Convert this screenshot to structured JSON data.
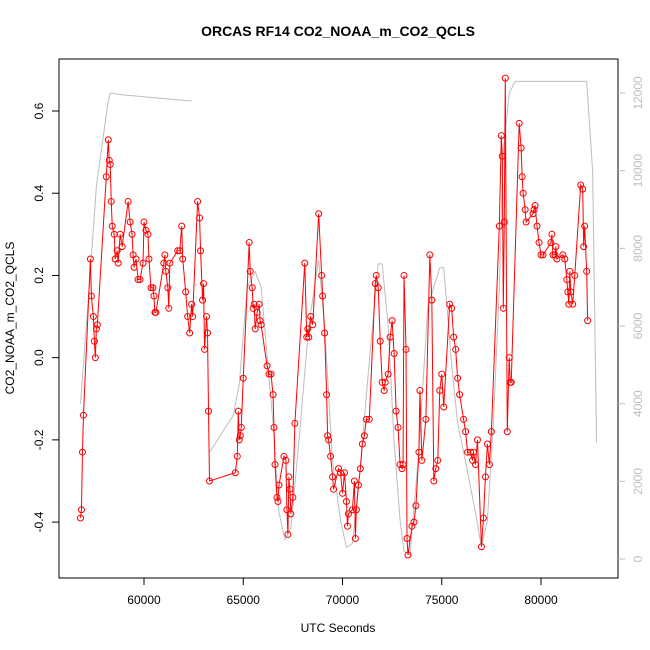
{
  "chart_data": {
    "type": "line",
    "title": "ORCAS RF14 CO2_NOAA_m_CO2_QCLS",
    "x_label": "UTC Seconds",
    "y_label": "CO2_NOAA_m_CO2_QCLS",
    "xlim": [
      55718,
      83879
    ],
    "xticks": [
      60000,
      65000,
      70000,
      75000,
      80000
    ],
    "ylim": [
      -0.536,
      0.7265
    ],
    "yticks": [
      -0.4,
      -0.2,
      {
        "value": 0,
        "label": "0.0"
      },
      0.2,
      0.4,
      0.6
    ],
    "y2lim": [
      -489,
      12876
    ],
    "y2ticks": [
      0,
      2000,
      4000,
      6000,
      8000,
      10000,
      12000
    ],
    "y2_color": "#bebebe",
    "series": [
      {
        "color": "#ff0000",
        "markers": true,
        "x": [
          56800,
          56850,
          56900,
          56950,
          57300,
          57350,
          57450,
          57500,
          57550,
          57600,
          57650,
          58100,
          58200,
          58250,
          58300,
          58350,
          58400,
          58500,
          58550,
          58650,
          58700,
          58800,
          58900,
          59200,
          59300,
          59400,
          59450,
          59500,
          59600,
          59700,
          59800,
          59950,
          60000,
          60100,
          60200,
          60250,
          60350,
          60450,
          60500,
          60550,
          60600,
          61000,
          61050,
          61100,
          61200,
          61250,
          61300,
          61700,
          61800,
          61900,
          61950,
          62100,
          62200,
          62300,
          62400,
          62450,
          62700,
          62800,
          62850,
          62950,
          63000,
          63050,
          63150,
          63200,
          63250,
          63300,
          64600,
          64700,
          64750,
          64800,
          64850,
          64900,
          65000,
          65300,
          65350,
          65450,
          65500,
          65550,
          65600,
          65700,
          65800,
          65850,
          65900,
          66200,
          66300,
          66400,
          66500,
          66550,
          66600,
          66700,
          66750,
          66800,
          67050,
          67150,
          67200,
          67250,
          67300,
          67350,
          67400,
          67500,
          67600,
          68100,
          68200,
          68250,
          68300,
          68400,
          68500,
          68800,
          68950,
          69000,
          69100,
          69200,
          69250,
          69300,
          69400,
          69500,
          69550,
          69800,
          69900,
          70000,
          70100,
          70200,
          70250,
          70300,
          70500,
          70600,
          70650,
          70700,
          70800,
          70900,
          71000,
          71100,
          71200,
          71350,
          71650,
          71700,
          71800,
          71900,
          72000,
          72100,
          72150,
          72300,
          72400,
          72500,
          72600,
          72700,
          72800,
          72900,
          73000,
          73050,
          73100,
          73200,
          73250,
          73300,
          73500,
          73600,
          73700,
          73850,
          73900,
          74000,
          74200,
          74400,
          74500,
          74600,
          74700,
          74800,
          74900,
          75000,
          75100,
          75400,
          75500,
          75600,
          75700,
          75800,
          75900,
          76100,
          76200,
          76300,
          76450,
          76550,
          76600,
          76700,
          76800,
          77000,
          77100,
          77200,
          77300,
          77400,
          77500,
          77900,
          78000,
          78050,
          78100,
          78150,
          78200,
          78300,
          78400,
          78450,
          78500,
          78900,
          79000,
          79050,
          79100,
          79200,
          79250,
          79600,
          79650,
          79700,
          79800,
          79900,
          80000,
          80100,
          80500,
          80550,
          80600,
          80700,
          80750,
          80800,
          81100,
          81200,
          81300,
          81350,
          81400,
          81450,
          81500,
          81600,
          81700,
          82000,
          82100,
          82150,
          82200,
          82300,
          82350
        ],
        "values": [
          -0.39,
          -0.37,
          -0.23,
          -0.14,
          0.24,
          0.15,
          0.1,
          0.04,
          0.0,
          0.07,
          0.08,
          0.44,
          0.53,
          0.48,
          0.47,
          0.38,
          0.32,
          0.3,
          0.24,
          0.26,
          0.23,
          0.3,
          0.27,
          0.38,
          0.33,
          0.3,
          0.25,
          0.22,
          0.24,
          0.19,
          0.19,
          0.23,
          0.33,
          0.31,
          0.3,
          0.24,
          0.17,
          0.17,
          0.15,
          0.11,
          0.11,
          0.23,
          0.25,
          0.21,
          0.17,
          0.12,
          0.23,
          0.26,
          0.26,
          0.32,
          0.24,
          0.16,
          0.1,
          0.06,
          0.13,
          0.1,
          0.38,
          0.34,
          0.26,
          0.14,
          0.18,
          0.02,
          0.1,
          0.06,
          -0.13,
          -0.3,
          -0.28,
          -0.24,
          -0.13,
          -0.2,
          -0.19,
          -0.17,
          -0.05,
          0.28,
          0.21,
          0.17,
          0.12,
          0.13,
          0.07,
          0.11,
          0.13,
          0.09,
          0.08,
          -0.02,
          -0.04,
          -0.04,
          -0.09,
          -0.17,
          -0.26,
          -0.34,
          -0.35,
          -0.31,
          -0.24,
          -0.25,
          -0.37,
          -0.43,
          -0.29,
          -0.32,
          -0.38,
          -0.34,
          -0.16,
          0.23,
          0.05,
          0.07,
          0.05,
          0.1,
          0.08,
          0.35,
          0.2,
          0.15,
          0.06,
          -0.09,
          -0.19,
          -0.2,
          -0.24,
          -0.29,
          -0.32,
          -0.27,
          -0.28,
          -0.33,
          -0.28,
          -0.35,
          -0.41,
          -0.38,
          -0.37,
          -0.3,
          -0.44,
          -0.37,
          -0.31,
          -0.27,
          -0.21,
          -0.19,
          -0.15,
          -0.15,
          0.18,
          0.2,
          0.17,
          0.04,
          -0.06,
          -0.08,
          -0.06,
          -0.04,
          0.05,
          0.09,
          0.01,
          -0.13,
          -0.17,
          -0.26,
          -0.27,
          -0.26,
          0.2,
          0.02,
          -0.44,
          -0.48,
          -0.41,
          -0.4,
          -0.36,
          -0.23,
          -0.08,
          -0.25,
          -0.15,
          0.25,
          0.14,
          -0.3,
          -0.27,
          -0.25,
          -0.08,
          -0.04,
          -0.12,
          0.13,
          0.12,
          0.05,
          0.02,
          -0.05,
          -0.09,
          -0.15,
          -0.18,
          -0.23,
          -0.23,
          -0.25,
          -0.23,
          -0.26,
          -0.2,
          -0.46,
          -0.39,
          -0.29,
          -0.21,
          -0.26,
          -0.18,
          0.32,
          0.54,
          0.49,
          0.12,
          0.33,
          0.68,
          -0.18,
          0.0,
          -0.06,
          -0.06,
          0.57,
          0.51,
          0.44,
          0.4,
          0.36,
          0.33,
          0.35,
          0.36,
          0.37,
          0.32,
          0.28,
          0.25,
          0.25,
          0.28,
          0.3,
          0.25,
          0.25,
          0.27,
          0.24,
          0.25,
          0.24,
          0.19,
          0.16,
          0.13,
          0.21,
          0.16,
          0.13,
          0.2,
          0.42,
          0.41,
          0.27,
          0.32,
          0.21,
          0.09
        ]
      },
      {
        "color": "#bebebe",
        "axis": "y2",
        "markers": false,
        "x": [
          56800,
          57300,
          57600,
          58200,
          58300,
          59000,
          62200,
          62400,
          62800,
          63300,
          64500,
          64800,
          65200,
          65600,
          65900,
          66500,
          66800,
          67100,
          67400,
          67800,
          68300,
          68800,
          69100,
          69500,
          69900,
          70200,
          70500,
          70800,
          71300,
          71800,
          72000,
          72300,
          72600,
          72900,
          73100,
          73400,
          73800,
          74300,
          74900,
          75100,
          75500,
          75800,
          76200,
          76700,
          77000,
          77300,
          77600,
          77900,
          78100,
          78400,
          78700,
          79000,
          82300,
          82600,
          82800
        ],
        "values": [
          4000,
          7400,
          9600,
          11800,
          12000,
          11950,
          11800,
          11800,
          null,
          2750,
          3700,
          4500,
          7000,
          7400,
          7000,
          3500,
          1200,
          500,
          800,
          3000,
          6000,
          7700,
          6000,
          2500,
          1000,
          300,
          400,
          1800,
          4800,
          7600,
          7600,
          6000,
          3000,
          1000,
          200,
          100,
          2500,
          6500,
          7500,
          7500,
          5000,
          3500,
          2500,
          1200,
          300,
          1000,
          3500,
          7000,
          10500,
          12000,
          12300,
          12300,
          12300,
          10000,
          3000
        ]
      }
    ]
  }
}
